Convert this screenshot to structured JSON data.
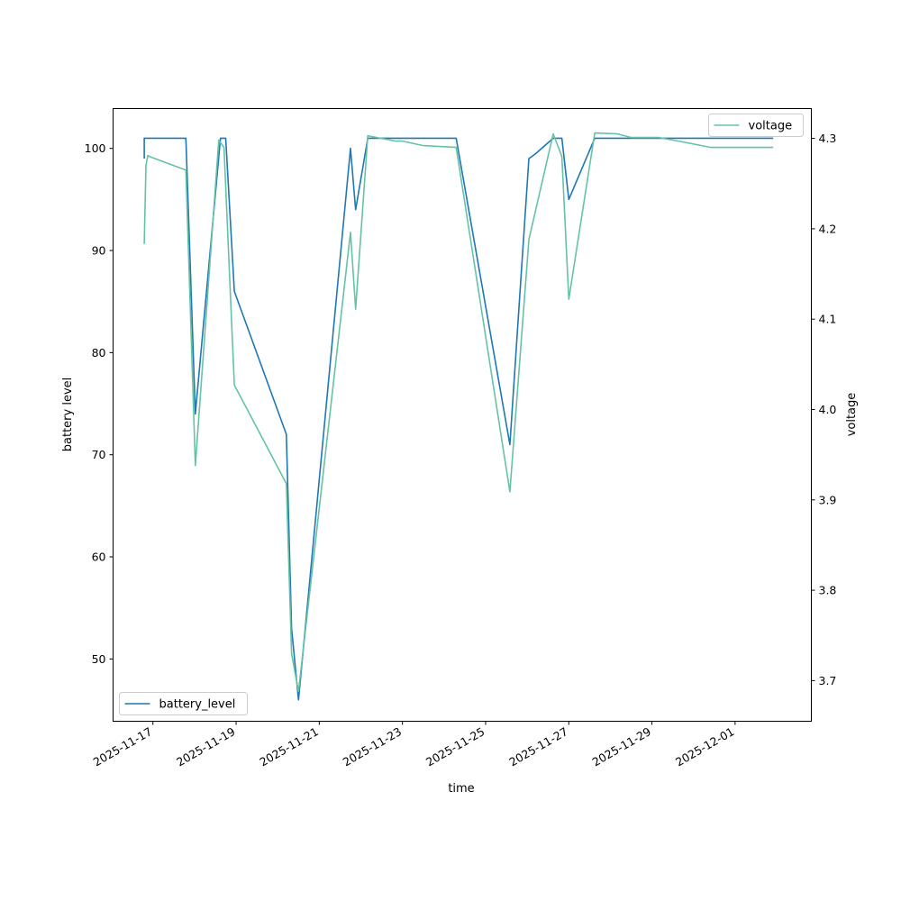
{
  "chart_data": {
    "type": "line",
    "xlabel": "time",
    "ylabel": "battery level",
    "y2label": "voltage",
    "x_ticks": [
      "2025-11-17",
      "2025-11-19",
      "2025-11-21",
      "2025-11-23",
      "2025-11-25",
      "2025-11-27",
      "2025-11-29",
      "2025-12-01"
    ],
    "xlim": [
      "2025-11-16T01:00",
      "2025-12-02T20:00"
    ],
    "ylim": [
      43.9,
      103.9
    ],
    "y2lim": [
      3.655,
      4.333
    ],
    "y_ticks": [
      50,
      60,
      70,
      80,
      90,
      100
    ],
    "y2_ticks": [
      "3.7",
      "3.8",
      "3.9",
      "4.0",
      "4.1",
      "4.2",
      "4.3"
    ],
    "grid": false,
    "series": [
      {
        "name": "battery_level",
        "axis": "left",
        "color": "#1f77b4",
        "legend_position": "lower-left",
        "points": [
          [
            "2025-11-16T19:00",
            99
          ],
          [
            "2025-11-16T19:00",
            101
          ],
          [
            "2025-11-17T19:00",
            101
          ],
          [
            "2025-11-18T00:30",
            74
          ],
          [
            "2025-11-18T15:00",
            101
          ],
          [
            "2025-11-18T18:00",
            101
          ],
          [
            "2025-11-18T23:00",
            86
          ],
          [
            "2025-11-20T05:00",
            72
          ],
          [
            "2025-11-20T08:00",
            53
          ],
          [
            "2025-11-20T12:00",
            46
          ],
          [
            "2025-11-21T18:00",
            100
          ],
          [
            "2025-11-21T21:00",
            94
          ],
          [
            "2025-11-22T04:00",
            101
          ],
          [
            "2025-11-24T07:00",
            101
          ],
          [
            "2025-11-25T14:00",
            71
          ],
          [
            "2025-11-26T01:00",
            99
          ],
          [
            "2025-11-26T05:00",
            99.5
          ],
          [
            "2025-11-26T15:00",
            101
          ],
          [
            "2025-11-26T20:00",
            101
          ],
          [
            "2025-11-27T00:00",
            95
          ],
          [
            "2025-11-27T15:00",
            101
          ],
          [
            "2025-12-01T22:00",
            101
          ]
        ]
      },
      {
        "name": "voltage",
        "axis": "right",
        "color": "#66c2a5",
        "legend_position": "upper-right",
        "points": [
          [
            "2025-11-16T19:00",
            4.183
          ],
          [
            "2025-11-16T20:00",
            4.27
          ],
          [
            "2025-11-16T21:00",
            4.281
          ],
          [
            "2025-11-16T22:00",
            4.28
          ],
          [
            "2025-11-17T19:00",
            4.265
          ],
          [
            "2025-11-18T00:30",
            3.938
          ],
          [
            "2025-11-18T14:00",
            4.298
          ],
          [
            "2025-11-18T17:00",
            4.29
          ],
          [
            "2025-11-18T23:00",
            4.027
          ],
          [
            "2025-11-20T05:00",
            3.918
          ],
          [
            "2025-11-20T08:00",
            3.73
          ],
          [
            "2025-11-20T12:00",
            3.688
          ],
          [
            "2025-11-21T18:00",
            4.196
          ],
          [
            "2025-11-21T21:00",
            4.111
          ],
          [
            "2025-11-22T04:00",
            4.303
          ],
          [
            "2025-11-22T12:00",
            4.3
          ],
          [
            "2025-11-22T20:00",
            4.297
          ],
          [
            "2025-11-23T00:00",
            4.297
          ],
          [
            "2025-11-23T12:00",
            4.292
          ],
          [
            "2025-11-24T07:00",
            4.29
          ],
          [
            "2025-11-25T14:00",
            3.909
          ],
          [
            "2025-11-26T01:00",
            4.188
          ],
          [
            "2025-11-26T15:00",
            4.305
          ],
          [
            "2025-11-26T20:00",
            4.28
          ],
          [
            "2025-11-27T00:00",
            4.122
          ],
          [
            "2025-11-27T15:00",
            4.306
          ],
          [
            "2025-11-28T04:00",
            4.305
          ],
          [
            "2025-11-28T12:00",
            4.301
          ],
          [
            "2025-11-29T04:00",
            4.301
          ],
          [
            "2025-11-29T18:00",
            4.296
          ],
          [
            "2025-11-30T10:00",
            4.29
          ],
          [
            "2025-12-01T22:00",
            4.29
          ]
        ]
      }
    ]
  }
}
